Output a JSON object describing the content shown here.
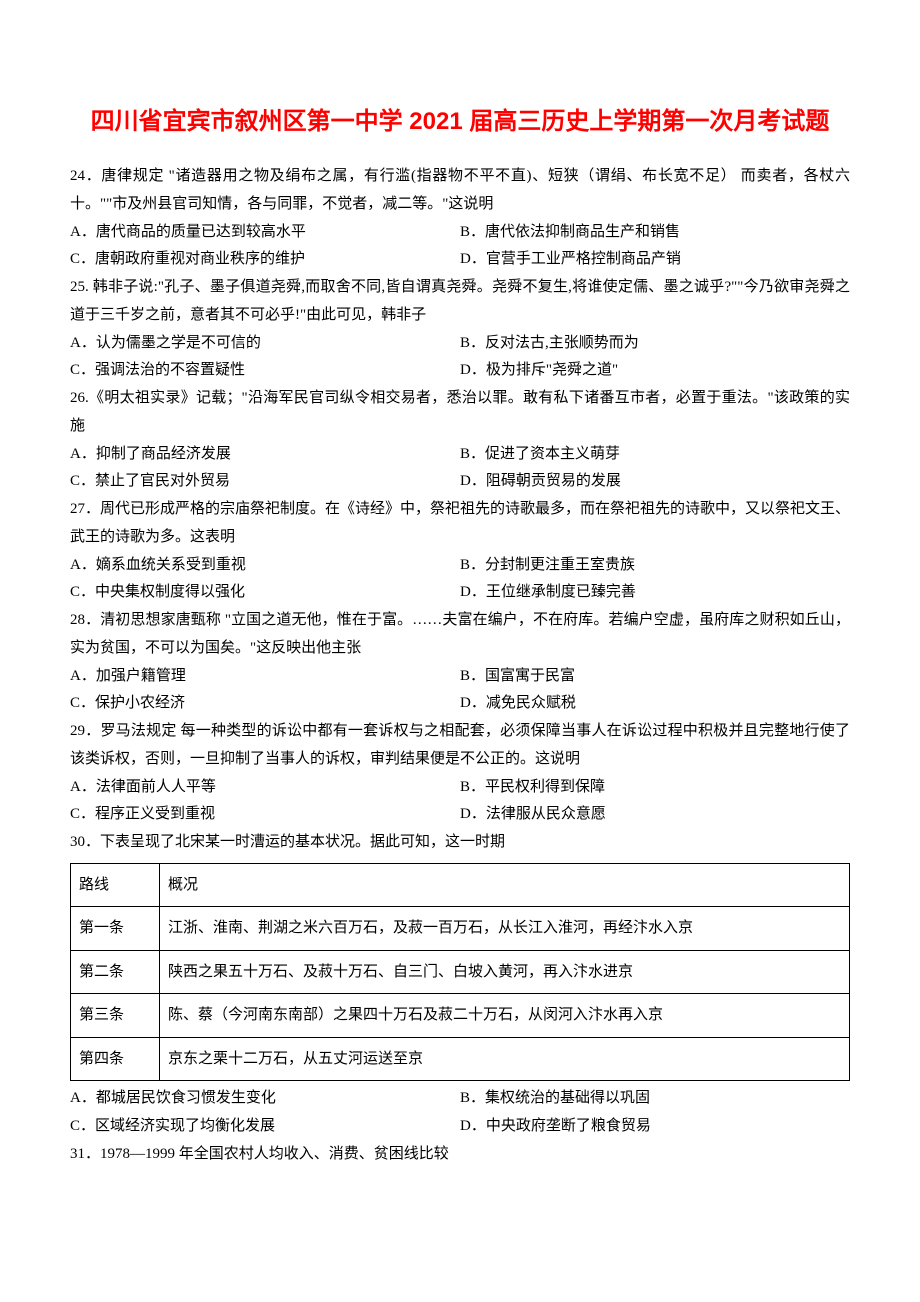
{
  "title": "四川省宜宾市叙州区第一中学 2021 届高三历史上学期第一次月考试题",
  "q24": {
    "stem": "24．唐律规定 \"诸造器用之物及绢布之属，有行滥(指器物不平不直)、短狭（谓绢、布长宽不足） 而卖者，各杖六十。\"\"市及州县官司知情，各与同罪，不觉者，减二等。\"这说明",
    "a": "A．唐代商品的质量已达到较高水平",
    "b": "B．唐代依法抑制商品生产和销售",
    "c": "C．唐朝政府重视对商业秩序的维护",
    "d": "D．官营手工业严格控制商品产销"
  },
  "q25": {
    "stem": "25. 韩非子说:\"孔子、墨子俱道尧舜,而取舍不同,皆自谓真尧舜。尧舜不复生,将谁使定儒、墨之诚乎?\"\"今乃欲审尧舜之道于三千岁之前，意者其不可必乎!\"由此可见，韩非子",
    "a": "A．认为儒墨之学是不可信的",
    "b": "B．反对法古,主张顺势而为",
    "c": "C．强调法治的不容置疑性",
    "d": "D．极为排斥\"尧舜之道\""
  },
  "q26": {
    "stem": "26.《明太祖实录》记载；\"沿海军民官司纵令相交易者，悉治以罪。敢有私下诸番互市者，必置于重法。\"该政策的实施",
    "a": "A．抑制了商品经济发展",
    "b": "B．促进了资本主义萌芽",
    "c": "C．禁止了官民对外贸易",
    "d": "D．阻碍朝贡贸易的发展"
  },
  "q27": {
    "stem": "27．周代已形成严格的宗庙祭祀制度。在《诗经》中，祭祀祖先的诗歌最多，而在祭祀祖先的诗歌中，又以祭祀文王、武王的诗歌为多。这表明",
    "a": "A．嫡系血统关系受到重视",
    "b": "B．分封制更注重王室贵族",
    "c": "C．中央集权制度得以强化",
    "d": "D．王位继承制度已臻完善"
  },
  "q28": {
    "stem": "28．清初思想家唐甄称 \"立国之道无他，惟在于富。……夫富在编户，不在府库。若编户空虚，虽府库之财积如丘山，实为贫国，不可以为国矣。\"这反映出他主张",
    "a": "A．加强户籍管理",
    "b": "B．国富寓于民富",
    "c": "C．保护小农经济",
    "d": "D．减免民众赋税"
  },
  "q29": {
    "stem": "29．罗马法规定 每一种类型的诉讼中都有一套诉权与之相配套，必须保障当事人在诉讼过程中积极并且完整地行使了该类诉权，否则，一旦抑制了当事人的诉权，审判结果便是不公正的。这说明",
    "a": "A．法律面前人人平等",
    "b": "B．平民权利得到保障",
    "c": "C．程序正义受到重视",
    "d": "D．法律服从民众意愿"
  },
  "q30": {
    "stem": "30．下表呈现了北宋某一时漕运的基本状况。据此可知，这一时期",
    "table": {
      "header": {
        "c1": "路线",
        "c2": "概况"
      },
      "rows": [
        {
          "c1": "第一条",
          "c2": "江浙、淮南、荆湖之米六百万石，及菽一百万石，从长江入淮河，再经汴水入京"
        },
        {
          "c1": "第二条",
          "c2": "陕西之果五十万石、及菽十万石、自三门、白坡入黄河，再入汴水进京"
        },
        {
          "c1": "第三条",
          "c2": "陈、蔡（今河南东南部）之果四十万石及菽二十万石，从闵河入汴水再入京"
        },
        {
          "c1": "第四条",
          "c2": "京东之栗十二万石，从五丈河运送至京"
        }
      ]
    },
    "a": "A．都城居民饮食习惯发生变化",
    "b": "B．集权统治的基础得以巩固",
    "c": "C．区域经济实现了均衡化发展",
    "d": "D．中央政府垄断了粮食贸易"
  },
  "q31": {
    "stem": "31．1978—1999 年全国农村人均收入、消费、贫困线比较"
  }
}
